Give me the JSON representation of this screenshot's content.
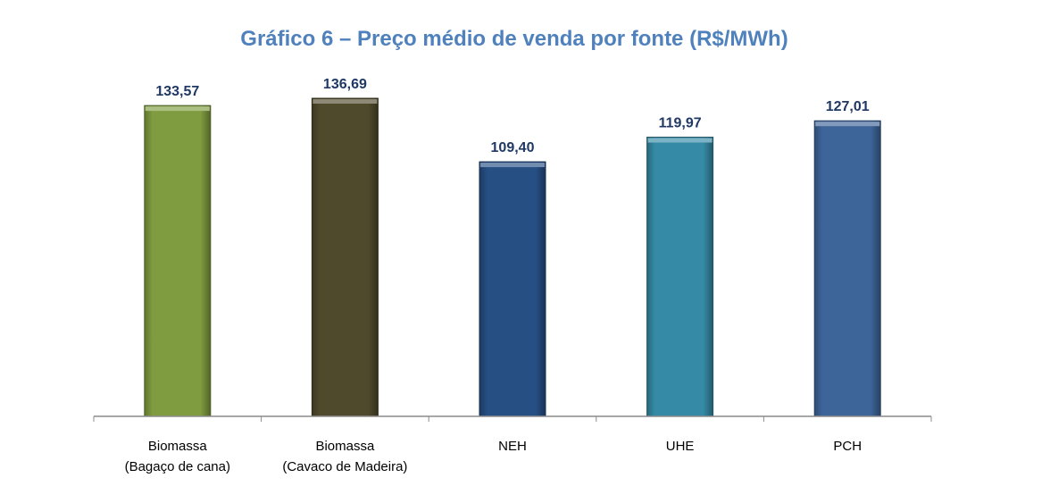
{
  "chart_data": {
    "type": "bar",
    "title": "Gráfico 6 – Preço médio de venda por fonte (R$/MWh)",
    "categories": [
      [
        "Biomassa",
        "(Bagaço de cana)"
      ],
      [
        "Biomassa",
        "(Cavaco de Madeira)"
      ],
      [
        "NEH"
      ],
      [
        "UHE"
      ],
      [
        "PCH"
      ]
    ],
    "values": [
      133.57,
      136.69,
      109.4,
      119.97,
      127.01
    ],
    "data_labels": [
      "133,57",
      "136,69",
      "109,40",
      "119,97",
      "127,01"
    ],
    "colors": [
      "#7f9c40",
      "#504a2c",
      "#264f84",
      "#358ba6",
      "#3e659a"
    ],
    "ylim": [
      0,
      136.69
    ],
    "grid": false,
    "legend": "none",
    "title_color": "#4f81bd",
    "label_color": "#1f3864"
  }
}
